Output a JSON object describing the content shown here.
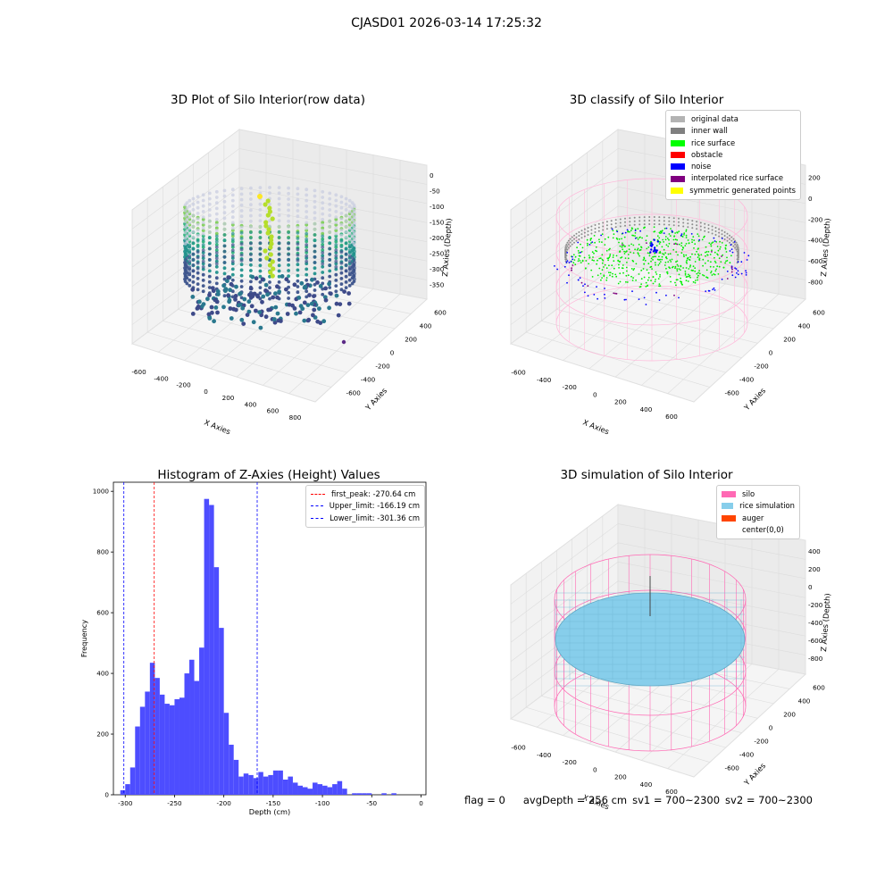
{
  "suptitle": "CJASD01 2026-03-14 17:25:32",
  "panel1": {
    "title": "3D Plot of Silo Interior(row data)",
    "xlabel": "X Axies",
    "ylabel": "Y Axies",
    "zlabel": "Z Axies (Depth)",
    "xticks": [
      "-600",
      "-400",
      "-200",
      "0",
      "200",
      "400",
      "600",
      "800"
    ],
    "yticks": [
      "600",
      "400",
      "200",
      "0",
      "-200",
      "-400",
      "-600"
    ],
    "zticks": [
      "0",
      "-50",
      "-100",
      "-150",
      "-200",
      "-250",
      "-300",
      "-350"
    ]
  },
  "panel2": {
    "title": "3D classify of Silo Interior",
    "xlabel": "X Axies",
    "ylabel": "Y Axies",
    "zlabel": "Z Axies (Depth)",
    "xticks": [
      "-600",
      "-400",
      "-200",
      "0",
      "200",
      "400",
      "600"
    ],
    "yticks": [
      "600",
      "400",
      "200",
      "0",
      "-200",
      "-400",
      "-600"
    ],
    "zticks": [
      "200",
      "0",
      "-200",
      "-400",
      "-600",
      "-800"
    ],
    "legend": [
      {
        "label": "original data",
        "color": "#b3b3b3"
      },
      {
        "label": "inner wall",
        "color": "#808080"
      },
      {
        "label": "rice surface",
        "color": "#00ff00"
      },
      {
        "label": "obstacle",
        "color": "#ff0000"
      },
      {
        "label": "noise",
        "color": "#0000ff"
      },
      {
        "label": "interpolated rice surface",
        "color": "#800080"
      },
      {
        "label": "symmetric generated points",
        "color": "#ffff00"
      }
    ]
  },
  "panel4": {
    "title": "3D simulation of Silo Interior",
    "xlabel": "X Axies",
    "ylabel": "Y Axies",
    "zlabel": "Z Axies (Depth)",
    "xticks": [
      "-600",
      "-400",
      "-200",
      "0",
      "200",
      "400",
      "600"
    ],
    "yticks": [
      "600",
      "400",
      "200",
      "0",
      "-200",
      "-400",
      "-600"
    ],
    "zticks": [
      "400",
      "200",
      "0",
      "-200",
      "-400",
      "-600",
      "-800"
    ],
    "legend": [
      {
        "label": "silo",
        "color": "#ff69b4"
      },
      {
        "label": "rice simulation",
        "color": "#87ceeb"
      },
      {
        "label": "auger",
        "color": "#ff4500"
      },
      {
        "label": "center(0,0)",
        "color": "#ffffff"
      }
    ]
  },
  "footer": {
    "flag": "flag = 0",
    "avg": "avgDepth = 256 cm",
    "sv1": "sv1 = 700~2300",
    "sv2": "sv2 = 700~2300"
  },
  "chart_data": [
    {
      "type": "bar",
      "title": "Histogram of Z-Axies (Height) Values",
      "xlabel": "Depth (cm)",
      "ylabel": "Frequency",
      "xlim": [
        -312,
        5
      ],
      "ylim": [
        0,
        1030
      ],
      "bin_width": 5,
      "bin_edges_start": -305,
      "values": [
        15,
        35,
        90,
        225,
        290,
        340,
        435,
        385,
        330,
        300,
        295,
        315,
        320,
        400,
        445,
        375,
        485,
        975,
        955,
        750,
        550,
        270,
        165,
        115,
        60,
        70,
        65,
        55,
        75,
        60,
        65,
        80,
        80,
        50,
        60,
        40,
        30,
        25,
        20,
        40,
        35,
        30,
        25,
        35,
        45,
        20,
        0,
        5,
        5,
        5,
        5,
        0,
        0,
        5,
        0,
        5
      ],
      "yticks": [
        0,
        200,
        400,
        600,
        800,
        1000
      ],
      "xticks": [
        -300,
        -250,
        -200,
        -150,
        -100,
        -50,
        0
      ],
      "bar_color": "#4d4dff",
      "vlines": [
        {
          "label": "first_peak: -270.64 cm",
          "x": -270.64,
          "color": "#ff0000"
        },
        {
          "label": "Upper_limit: -166.19 cm",
          "x": -166.19,
          "color": "#0000ff"
        },
        {
          "label": "Lower_limit: -301.36 cm",
          "x": -301.36,
          "color": "#0000ff"
        }
      ]
    }
  ]
}
